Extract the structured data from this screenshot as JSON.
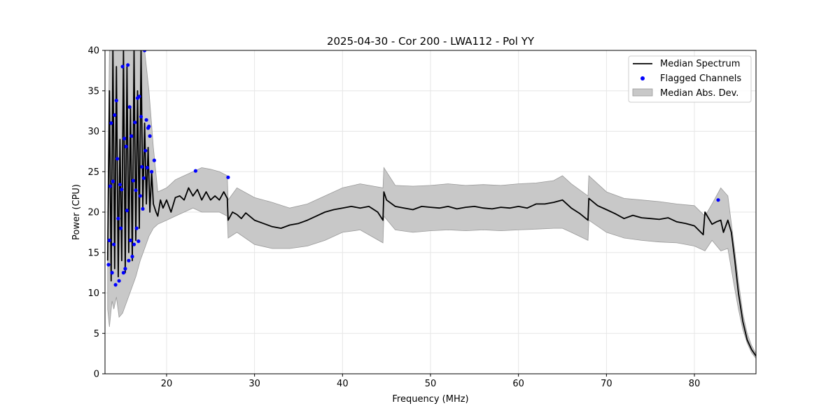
{
  "chart_data": {
    "type": "line",
    "title": "2025-04-30 - Cor 200 - LWA112 - Pol YY",
    "xlabel": "Frequency (MHz)",
    "ylabel": "Power (CPU)",
    "xlim": [
      13.0,
      87.0
    ],
    "ylim": [
      0,
      40
    ],
    "xticks": [
      20,
      30,
      40,
      50,
      60,
      70,
      80
    ],
    "yticks": [
      0,
      5,
      10,
      15,
      20,
      25,
      30,
      35,
      40
    ],
    "grid": true,
    "legend_position": "top-right",
    "colors": {
      "median": "#000000",
      "flagged": "#0000ff",
      "band_fill": "#c8c8c8",
      "band_edge": "#999999"
    },
    "series": [
      {
        "name": "Median Spectrum",
        "kind": "line",
        "x": [
          13.3,
          13.5,
          13.7,
          13.9,
          14.1,
          14.3,
          14.5,
          14.7,
          14.9,
          15.1,
          15.3,
          15.5,
          15.7,
          15.9,
          16.1,
          16.3,
          16.5,
          16.7,
          16.9,
          17.1,
          17.3,
          17.5,
          17.7,
          17.9,
          18.1,
          18.3,
          18.5,
          18.8,
          19.0,
          19.3,
          19.6,
          20.0,
          20.5,
          21.0,
          21.5,
          22.0,
          22.5,
          23.0,
          23.5,
          24.0,
          24.5,
          25.0,
          25.5,
          26.0,
          26.5,
          26.9,
          27.0,
          27.5,
          28.0,
          28.5,
          29.0,
          30.0,
          31.0,
          32.0,
          33.0,
          34.0,
          35.0,
          36.0,
          37.0,
          38.0,
          39.0,
          40.0,
          41.0,
          42.0,
          43.0,
          44.0,
          44.6,
          44.7,
          45.0,
          46.0,
          47.0,
          48.0,
          49.0,
          50.0,
          51.0,
          52.0,
          53.0,
          54.0,
          55.0,
          56.0,
          57.0,
          58.0,
          59.0,
          60.0,
          61.0,
          62.0,
          63.0,
          64.0,
          65.0,
          66.0,
          67.0,
          67.9,
          68.0,
          69.0,
          70.0,
          71.0,
          72.0,
          73.0,
          74.0,
          75.0,
          76.0,
          77.0,
          78.0,
          79.0,
          80.0,
          81.0,
          81.2,
          82.0,
          82.5,
          83.0,
          83.3,
          83.8,
          84.2,
          84.6,
          85.0,
          85.5,
          86.0,
          86.5,
          87.0
        ],
        "y": [
          14.0,
          35.0,
          11.5,
          40.0,
          13.0,
          38.0,
          12.0,
          29.0,
          14.0,
          40.0,
          12.5,
          38.0,
          15.0,
          33.0,
          14.0,
          40.0,
          16.5,
          35.0,
          18.0,
          40.0,
          20.5,
          31.0,
          21.0,
          28.0,
          20.0,
          25.0,
          21.0,
          20.0,
          19.5,
          21.5,
          20.5,
          21.5,
          20.0,
          21.8,
          22.0,
          21.5,
          23.0,
          22.0,
          22.8,
          21.5,
          22.5,
          21.5,
          22.0,
          21.5,
          22.5,
          21.7,
          19.0,
          20.0,
          19.7,
          19.2,
          19.9,
          19.0,
          18.6,
          18.2,
          18.0,
          18.4,
          18.6,
          19.0,
          19.5,
          20.0,
          20.3,
          20.5,
          20.7,
          20.5,
          20.7,
          20.0,
          19.0,
          22.5,
          21.5,
          20.7,
          20.5,
          20.3,
          20.7,
          20.6,
          20.5,
          20.7,
          20.4,
          20.6,
          20.7,
          20.5,
          20.4,
          20.6,
          20.5,
          20.7,
          20.5,
          21.0,
          21.0,
          21.2,
          21.5,
          20.5,
          19.8,
          19.0,
          21.7,
          20.8,
          20.3,
          19.8,
          19.2,
          19.6,
          19.3,
          19.2,
          19.1,
          19.3,
          18.8,
          18.6,
          18.3,
          17.2,
          20.0,
          18.5,
          18.8,
          19.0,
          17.5,
          19.0,
          17.5,
          14.0,
          10.0,
          6.5,
          4.2,
          3.0,
          2.2
        ]
      },
      {
        "name": "Flagged Channels",
        "kind": "scatter",
        "x": [
          13.4,
          13.5,
          13.6,
          13.7,
          13.8,
          13.9,
          14.0,
          14.1,
          14.2,
          14.3,
          14.4,
          14.5,
          14.6,
          14.7,
          14.8,
          14.9,
          15.0,
          15.1,
          15.2,
          15.3,
          15.4,
          15.5,
          15.6,
          15.7,
          15.8,
          15.9,
          16.0,
          16.1,
          16.2,
          16.3,
          16.4,
          16.5,
          16.6,
          16.7,
          16.8,
          16.9,
          17.0,
          17.1,
          17.2,
          17.3,
          17.4,
          17.5,
          17.6,
          17.7,
          17.8,
          17.9,
          18.0,
          18.1,
          18.3,
          18.6,
          23.3,
          27.0,
          82.7
        ],
        "y": [
          13.5,
          16.5,
          23.2,
          31.0,
          12.5,
          23.8,
          16.0,
          32.0,
          11.0,
          33.8,
          26.6,
          19.2,
          11.5,
          23.4,
          18.0,
          22.8,
          38.0,
          12.5,
          29.1,
          13.0,
          28.1,
          20.2,
          38.2,
          14.0,
          33.0,
          16.5,
          29.4,
          14.5,
          23.9,
          16.0,
          31.1,
          22.7,
          18.0,
          34.1,
          16.4,
          34.3,
          22.0,
          31.8,
          25.6,
          20.4,
          24.2,
          40.0,
          27.6,
          31.4,
          25.5,
          30.4,
          30.6,
          29.4,
          25.0,
          26.4,
          25.1,
          24.3,
          21.5
        ]
      },
      {
        "name": "Median Abs. Dev.",
        "kind": "band",
        "x": [
          13.3,
          13.5,
          13.8,
          14.0,
          14.3,
          14.6,
          15.0,
          15.5,
          16.0,
          16.5,
          17.0,
          17.5,
          18.0,
          18.5,
          19.0,
          20.0,
          21.0,
          22.0,
          23.0,
          24.0,
          25.0,
          26.0,
          26.9,
          27.0,
          28.0,
          30.0,
          32.0,
          34.0,
          36.0,
          38.0,
          40.0,
          42.0,
          44.6,
          44.7,
          46.0,
          48.0,
          50.0,
          52.0,
          54.0,
          56.0,
          58.0,
          60.0,
          62.0,
          64.0,
          65.0,
          66.0,
          67.9,
          68.0,
          70.0,
          72.0,
          74.0,
          76.0,
          78.0,
          80.0,
          81.2,
          82.0,
          83.0,
          83.8,
          84.5,
          85.0,
          85.5,
          86.0,
          86.5,
          87.0
        ],
        "lower": [
          8.0,
          5.8,
          9.0,
          8.0,
          9.5,
          7.0,
          7.5,
          9.0,
          10.5,
          12.0,
          14.0,
          15.5,
          17.0,
          18.0,
          18.5,
          19.0,
          19.5,
          20.0,
          20.5,
          20.0,
          20.0,
          20.0,
          19.5,
          16.8,
          17.5,
          16.0,
          15.5,
          15.5,
          15.8,
          16.5,
          17.5,
          17.8,
          16.2,
          19.5,
          17.8,
          17.5,
          17.7,
          17.8,
          17.7,
          17.8,
          17.7,
          17.8,
          17.9,
          18.0,
          18.0,
          17.5,
          16.5,
          19.0,
          17.5,
          16.8,
          16.5,
          16.3,
          16.2,
          15.8,
          15.2,
          16.5,
          15.2,
          15.5,
          11.0,
          8.0,
          5.5,
          3.8,
          2.6,
          1.9
        ],
        "upper": [
          20.0,
          40.0,
          40.0,
          40.0,
          40.0,
          40.0,
          40.0,
          40.0,
          40.0,
          40.0,
          40.0,
          40.0,
          35.0,
          28.0,
          22.5,
          23.0,
          24.0,
          24.5,
          25.0,
          25.5,
          25.3,
          25.0,
          24.5,
          21.5,
          23.0,
          21.8,
          21.2,
          20.5,
          21.0,
          22.0,
          23.0,
          23.5,
          23.0,
          25.5,
          23.3,
          23.2,
          23.3,
          23.5,
          23.3,
          23.4,
          23.3,
          23.5,
          23.6,
          23.9,
          24.5,
          23.5,
          22.0,
          24.5,
          22.5,
          21.7,
          21.5,
          21.3,
          21.0,
          20.8,
          19.5,
          21.0,
          23.0,
          22.0,
          16.0,
          11.5,
          7.5,
          5.0,
          3.5,
          2.5
        ]
      }
    ]
  }
}
